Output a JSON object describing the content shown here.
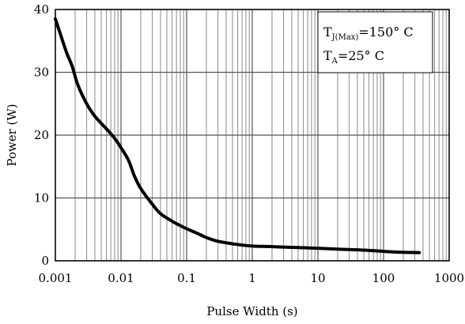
{
  "chart_data": {
    "type": "line",
    "title": "",
    "xlabel": "Pulse Width (s)",
    "ylabel": "Power (W)",
    "xscale": "log",
    "xlim": [
      0.001,
      1000
    ],
    "ylim": [
      0,
      40
    ],
    "xticks": [
      "0.001",
      "0.01",
      "0.1",
      "1",
      "10",
      "100",
      "1000"
    ],
    "yticks": [
      "0",
      "10",
      "20",
      "30",
      "40"
    ],
    "grid": true,
    "legend": "none",
    "line_color": "#000000",
    "series": [
      {
        "x": [
          0.001,
          0.0012,
          0.0015,
          0.0018,
          0.0022,
          0.003,
          0.004,
          0.006,
          0.008,
          0.01,
          0.013,
          0.016,
          0.02,
          0.03,
          0.04,
          0.06,
          0.08,
          0.1,
          0.15,
          0.2,
          0.3,
          0.5,
          0.7,
          1,
          2,
          5,
          10,
          20,
          50,
          100,
          200,
          350
        ],
        "values": [
          38.5,
          36,
          33,
          31,
          28,
          25,
          23,
          21,
          19.5,
          18,
          16,
          13.5,
          11.5,
          9,
          7.5,
          6.3,
          5.6,
          5.1,
          4.3,
          3.7,
          3.1,
          2.7,
          2.5,
          2.35,
          2.25,
          2.1,
          2.0,
          1.85,
          1.7,
          1.5,
          1.35,
          1.3
        ]
      }
    ],
    "annotation": {
      "line1_main": "T",
      "line1_sub": "J(Max)",
      "line1_rest": "=150° C",
      "line2_main": "T",
      "line2_sub": "A",
      "line2_rest": "=25° C"
    }
  }
}
